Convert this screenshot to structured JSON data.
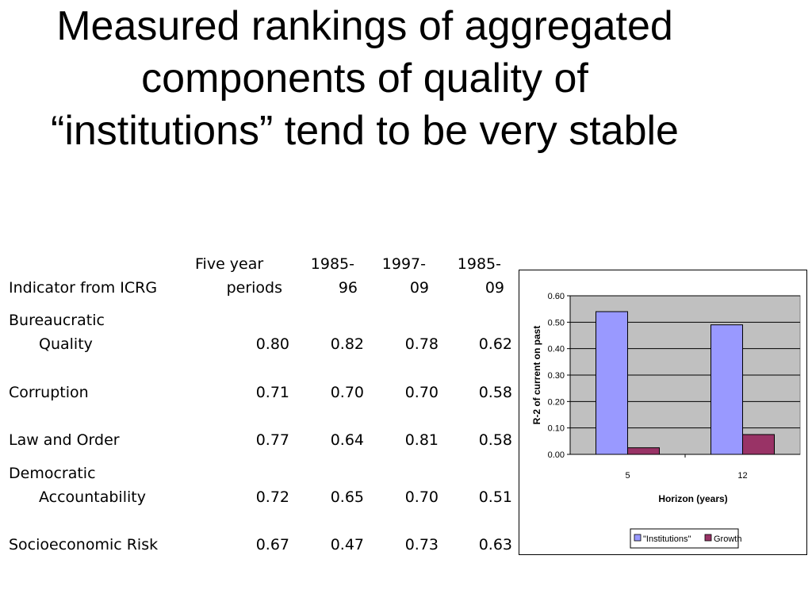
{
  "title": {
    "line1": "Measured rankings of aggregated",
    "line2": "components of quality of",
    "line3": "“institutions” tend to be very stable"
  },
  "table": {
    "headers": {
      "indicator": "Indicator from ICRG",
      "five_year_1": "Five year",
      "five_year_2": "periods",
      "p1_1": "1985-",
      "p1_2": "96",
      "p2_1": "1997-",
      "p2_2": "09",
      "p3_1": "1985-",
      "p3_2": "09"
    },
    "rows": [
      {
        "label1": "Bureaucratic",
        "label2": "Quality",
        "values": [
          "0.80",
          "0.82",
          "0.78",
          "0.62"
        ]
      },
      {
        "label1": "Corruption",
        "label2": "",
        "values": [
          "0.71",
          "0.70",
          "0.70",
          "0.58"
        ]
      },
      {
        "label1": "Law and Order",
        "label2": "",
        "values": [
          "0.77",
          "0.64",
          "0.81",
          "0.58"
        ]
      },
      {
        "label1": "Democratic",
        "label2": "Accountability",
        "values": [
          "0.72",
          "0.65",
          "0.70",
          "0.51"
        ]
      },
      {
        "label1": "Socioeconomic Risk",
        "label2": "",
        "values": [
          "0.67",
          "0.47",
          "0.73",
          "0.63"
        ]
      }
    ]
  },
  "chart_data": {
    "type": "bar",
    "categories": [
      "5",
      "12"
    ],
    "series": [
      {
        "name": "\"Institutions\"",
        "values": [
          0.54,
          0.49
        ],
        "color": "#9999ff"
      },
      {
        "name": "Growth",
        "values": [
          0.025,
          0.075
        ],
        "color": "#993366"
      }
    ],
    "xlabel": "Horizon (years)",
    "ylabel": "R-2 of current on past",
    "ylim": [
      0,
      0.6
    ],
    "yticks": [
      "0.00",
      "0.10",
      "0.20",
      "0.30",
      "0.40",
      "0.50",
      "0.60"
    ],
    "grid": true,
    "plot_background": "#c0c0c0",
    "legend_position": "bottom"
  }
}
